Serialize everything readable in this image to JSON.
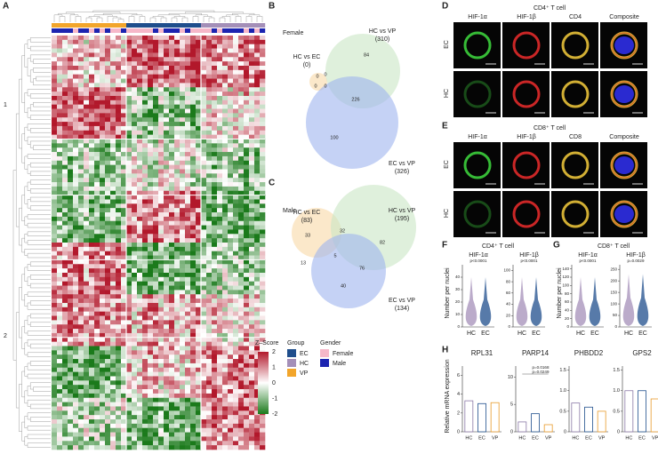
{
  "panel_labels": [
    "A",
    "B",
    "C",
    "D",
    "E",
    "F",
    "G",
    "H"
  ],
  "heatmap": {
    "cluster_labels": [
      "1",
      "2"
    ],
    "legend": {
      "zscore_title": "Z–Score",
      "zscore_ticks": [
        2,
        1,
        0,
        -1,
        -2
      ],
      "group_title": "Group",
      "groups": [
        {
          "name": "EC",
          "color": "#1f4e8c"
        },
        {
          "name": "HC",
          "color": "#a48fb8"
        },
        {
          "name": "VP",
          "color": "#f2a52b"
        }
      ],
      "gender_title": "Gender",
      "genders": [
        {
          "name": "Female",
          "color": "#f6b8c9"
        },
        {
          "name": "Male",
          "color": "#1c24b0"
        }
      ]
    }
  },
  "venn_b": {
    "title": "Female",
    "sets": [
      {
        "name": "HC vs EC",
        "count": "(0)",
        "color": "#f9d9a6"
      },
      {
        "name": "HC vs VP",
        "count": "(310)",
        "color": "#c9e6c4"
      },
      {
        "name": "EC vs VP",
        "count": "(326)",
        "color": "#9fb4ee"
      }
    ],
    "regions": [
      0,
      0,
      0,
      0,
      84,
      226,
      100
    ]
  },
  "venn_c": {
    "title": "Male",
    "sets": [
      {
        "name": "HC vs EC",
        "count": "(83)",
        "color": "#f9d9a6"
      },
      {
        "name": "HC vs VP",
        "count": "(195)",
        "color": "#c9e6c4"
      },
      {
        "name": "EC vs VP",
        "count": "(134)",
        "color": "#9fb4ee"
      }
    ],
    "regions": [
      33,
      32,
      82,
      13,
      5,
      76,
      40
    ]
  },
  "microscopy": {
    "d_title": "CD4⁺ T cell",
    "d_columns": [
      "HIF-1α",
      "HIF-1β",
      "CD4",
      "Composite"
    ],
    "e_title": "CD8⁺ T cell",
    "e_columns": [
      "HIF-1α",
      "HIF-1β",
      "CD8",
      "Composite"
    ],
    "rows": [
      "EC",
      "HC"
    ]
  },
  "violin": {
    "f_title": "CD4⁺ T cell",
    "g_title": "CD8⁺ T cell",
    "y_label": "Number per nuclei",
    "x_labels": [
      "HC",
      "EC"
    ],
    "plots": [
      {
        "title": "HIF-1α",
        "p": "p<0.0001",
        "ylim": [
          0,
          50
        ],
        "yticks": [
          0,
          10,
          20,
          30,
          40
        ]
      },
      {
        "title": "HIF-1β",
        "p": "p<0.0001",
        "ylim": [
          0,
          110
        ],
        "yticks": [
          0,
          20,
          40,
          60,
          80,
          100
        ]
      },
      {
        "title": "HIF-1α",
        "p": "p<0.0001",
        "ylim": [
          0,
          150
        ],
        "yticks": [
          0,
          20,
          40,
          60,
          80,
          100,
          120,
          140
        ]
      },
      {
        "title": "HIF-1β",
        "p": "p=0.0029",
        "ylim": [
          0,
          270
        ],
        "yticks": [
          0,
          50,
          100,
          150,
          200,
          250
        ]
      }
    ]
  },
  "chart_data": [
    {
      "type": "bar",
      "title": "RPL31",
      "ylabel": "Relative mRNA expression",
      "categories": [
        "HC",
        "EC",
        "VP"
      ],
      "values": [
        3.3,
        3.0,
        3.1
      ],
      "colors": [
        "#8a78a6",
        "#1f4e8c",
        "#e89a2a"
      ],
      "ylim": [
        0,
        7
      ],
      "yticks": [
        0,
        2,
        4,
        6
      ]
    },
    {
      "type": "bar",
      "title": "PARP14",
      "categories": [
        "HC",
        "EC",
        "VP"
      ],
      "values": [
        1.8,
        3.3,
        1.3
      ],
      "colors": [
        "#8a78a6",
        "#1f4e8c",
        "#e89a2a"
      ],
      "ylim": [
        0,
        12
      ],
      "yticks": [
        0,
        5,
        10
      ],
      "annotations": [
        "p=0.0168",
        "p=0.0249"
      ]
    },
    {
      "type": "bar",
      "title": "PHBDD2",
      "categories": [
        "HC",
        "EC",
        "VP"
      ],
      "values": [
        0.7,
        0.6,
        0.5
      ],
      "colors": [
        "#8a78a6",
        "#1f4e8c",
        "#e89a2a"
      ],
      "ylim": [
        0,
        1.6
      ],
      "yticks": [
        0,
        0.5,
        {
          "value": 1,
          "label": "1.0"
        },
        1.5
      ]
    },
    {
      "type": "bar",
      "title": "GPS2",
      "categories": [
        "HC",
        "EC",
        "VP"
      ],
      "values": [
        1.0,
        1.0,
        0.8
      ],
      "colors": [
        "#8a78a6",
        "#1f4e8c",
        "#e89a2a"
      ],
      "ylim": [
        0,
        1.6
      ],
      "yticks": [
        0,
        0.5,
        {
          "value": 1,
          "label": "1.0"
        },
        1.5
      ]
    }
  ]
}
